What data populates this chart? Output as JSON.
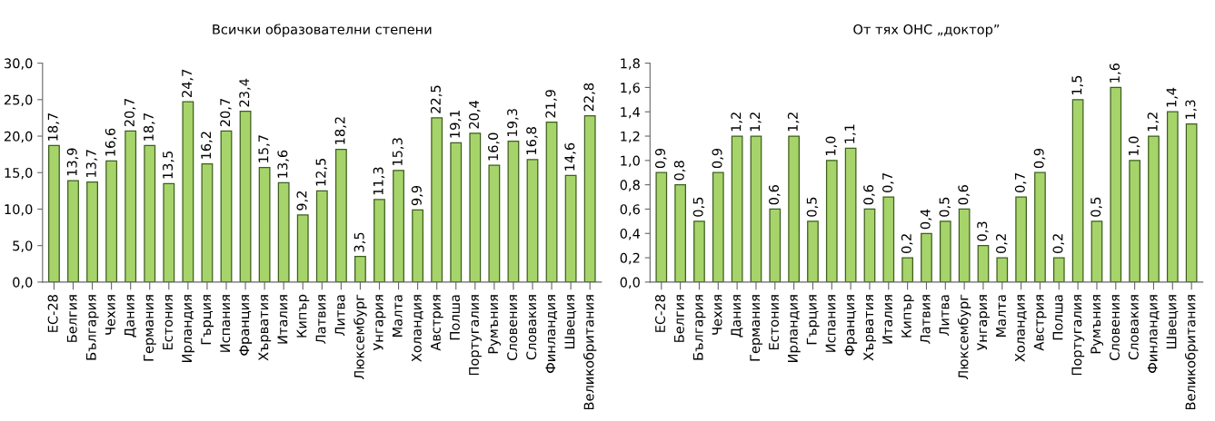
{
  "chart_data": [
    {
      "type": "bar",
      "title": "Всички образователни степени",
      "categories": [
        "ЕС-28",
        "Белгия",
        "България",
        "Чехия",
        "Дания",
        "Германия",
        "Естония",
        "Ирландия",
        "Гърция",
        "Испания",
        "Франция",
        "Хърватия",
        "Италия",
        "Кипър",
        "Латвия",
        "Литва",
        "Люксембург",
        "Унгария",
        "Малта",
        "Холандия",
        "Австрия",
        "Полша",
        "Португалия",
        "Румъния",
        "Словения",
        "Словакия",
        "Финландия",
        "Швеция",
        "Великобритания"
      ],
      "values": [
        18.7,
        13.9,
        13.7,
        16.6,
        20.7,
        18.7,
        13.5,
        24.7,
        16.2,
        20.7,
        23.4,
        15.7,
        13.6,
        9.2,
        12.5,
        18.2,
        3.5,
        11.3,
        15.3,
        9.9,
        22.5,
        19.1,
        20.4,
        16.0,
        19.3,
        16.8,
        21.9,
        14.6,
        22.8
      ],
      "value_labels": [
        "18,7",
        "13,9",
        "13,7",
        "16,6",
        "20,7",
        "18,7",
        "13,5",
        "24,7",
        "16,2",
        "20,7",
        "23,4",
        "15,7",
        "13,6",
        "9,2",
        "12,5",
        "18,2",
        "3,5",
        "11,3",
        "15,3",
        "9,9",
        "22,5",
        "19,1",
        "20,4",
        "16,0",
        "19,3",
        "16,8",
        "21,9",
        "14,6",
        "22,8"
      ],
      "color": "#a6d46a",
      "ylim": [
        0,
        30
      ],
      "yticks": [
        {
          "value": 0,
          "label": "0,0"
        },
        {
          "value": 5,
          "label": "5,0"
        },
        {
          "value": 10,
          "label": "10,0"
        },
        {
          "value": 15,
          "label": "15,0"
        },
        {
          "value": 20,
          "label": "20,0"
        },
        {
          "value": 25,
          "label": "25,0"
        },
        {
          "value": 30,
          "label": "30,0"
        }
      ],
      "grid": false,
      "legend": false
    },
    {
      "type": "bar",
      "title": "От тях ОНС „доктор”",
      "categories": [
        "ЕС-28",
        "Белгия",
        "България",
        "Чехия",
        "Дания",
        "Германия",
        "Естония",
        "Ирландия",
        "Гърция",
        "Испания",
        "Франция",
        "Хърватия",
        "Италия",
        "Кипър",
        "Латвия",
        "Литва",
        "Люксембург",
        "Унгария",
        "Малта",
        "Холандия",
        "Австрия",
        "Полша",
        "Португалия",
        "Румъния",
        "Словения",
        "Словакия",
        "Финландия",
        "Швеция",
        "Великобритания"
      ],
      "values": [
        0.9,
        0.8,
        0.5,
        0.9,
        1.2,
        1.2,
        0.6,
        1.2,
        0.5,
        1.0,
        1.1,
        0.6,
        0.7,
        0.2,
        0.4,
        0.5,
        0.6,
        0.3,
        0.2,
        0.7,
        0.9,
        0.2,
        1.5,
        0.5,
        1.6,
        1.0,
        1.2,
        1.4,
        1.3
      ],
      "value_labels": [
        "0,9",
        "0,8",
        "0,5",
        "0,9",
        "1,2",
        "1,2",
        "0,6",
        "1,2",
        "0,5",
        "1,0",
        "1,1",
        "0,6",
        "0,7",
        "0,2",
        "0,4",
        "0,5",
        "0,6",
        "0,3",
        "0,2",
        "0,7",
        "0,9",
        "0,2",
        "1,5",
        "0,5",
        "1,6",
        "1,0",
        "1,2",
        "1,4",
        "1,3"
      ],
      "color": "#a6d46a",
      "ylim": [
        0,
        1.8
      ],
      "yticks": [
        {
          "value": 0,
          "label": "0,0"
        },
        {
          "value": 0.2,
          "label": "0,2"
        },
        {
          "value": 0.4,
          "label": "0,4"
        },
        {
          "value": 0.6,
          "label": "0,6"
        },
        {
          "value": 0.8,
          "label": "0,8"
        },
        {
          "value": 1.0,
          "label": "1,0"
        },
        {
          "value": 1.2,
          "label": "1,2"
        },
        {
          "value": 1.4,
          "label": "1,4"
        },
        {
          "value": 1.6,
          "label": "1,6"
        },
        {
          "value": 1.8,
          "label": "1,8"
        }
      ],
      "grid": false,
      "legend": false
    }
  ]
}
